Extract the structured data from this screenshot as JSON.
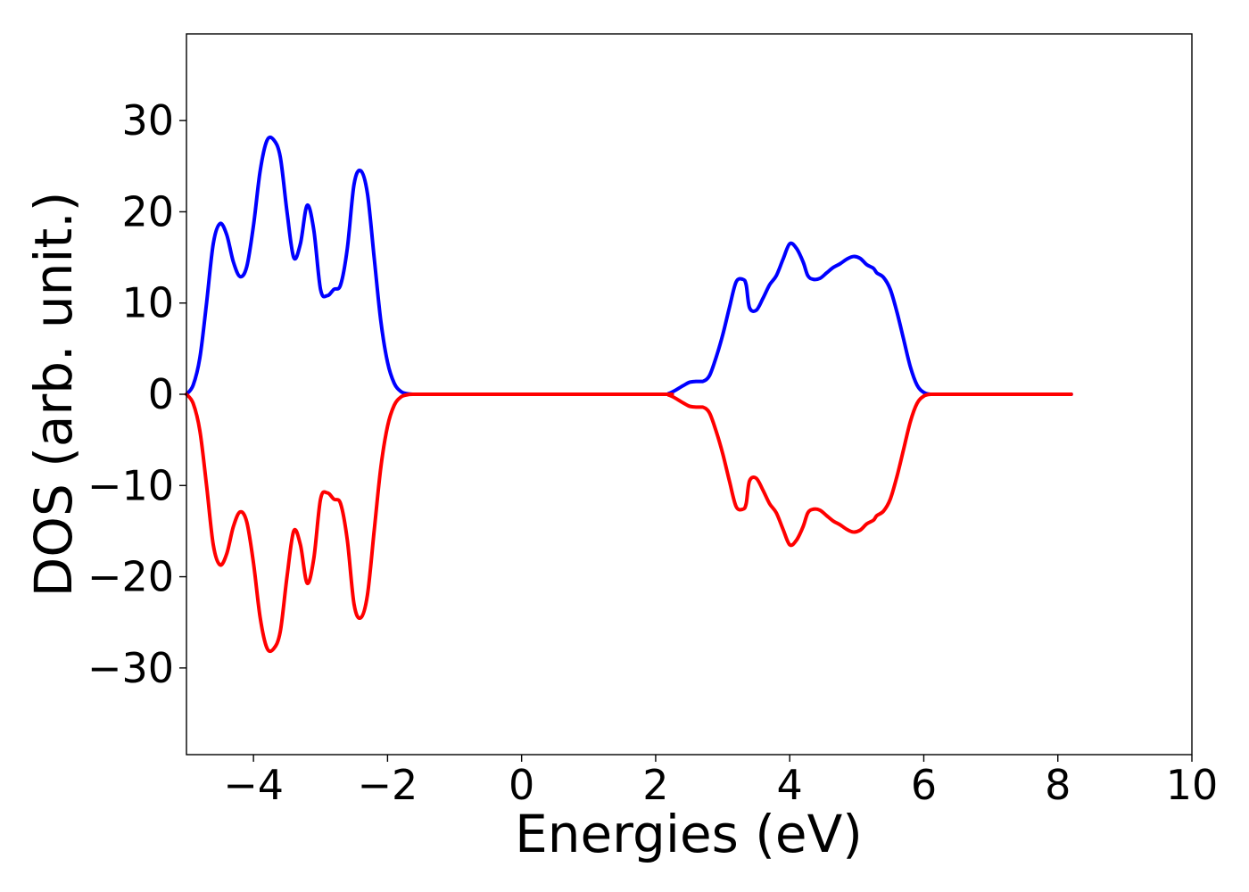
{
  "chart_data": {
    "type": "line",
    "title": "",
    "xlabel": "Energies (eV)",
    "ylabel": "DOS (arb. unit.)",
    "xlim": [
      -5,
      10
    ],
    "ylim": [
      -39.5,
      39.5
    ],
    "xticks": [
      -4,
      -2,
      0,
      2,
      4,
      6,
      8,
      10
    ],
    "yticks": [
      -30,
      -20,
      -10,
      0,
      10,
      20,
      30
    ],
    "xtick_labels": [
      "−4",
      "−2",
      "0",
      "2",
      "4",
      "6",
      "8",
      "10"
    ],
    "ytick_labels": [
      "−30",
      "−20",
      "−10",
      "0",
      "10",
      "20",
      "30"
    ],
    "grid": false,
    "legend": "none",
    "series": [
      {
        "color": "#0000ff",
        "x": [
          -5.0,
          -4.9,
          -4.8,
          -4.7,
          -4.6,
          -4.5,
          -4.4,
          -4.3,
          -4.2,
          -4.1,
          -4.0,
          -3.9,
          -3.8,
          -3.7,
          -3.6,
          -3.5,
          -3.4,
          -3.3,
          -3.2,
          -3.1,
          -3.0,
          -2.9,
          -2.8,
          -2.7,
          -2.6,
          -2.5,
          -2.4,
          -2.3,
          -2.2,
          -2.1,
          -2.0,
          -1.9,
          -1.8,
          -1.7,
          -1.6,
          -1.5,
          -1.4,
          -1.3,
          -1.2,
          -1.1,
          -1.0,
          -0.9,
          -0.8,
          -0.7,
          -0.6,
          -0.5,
          2.0,
          2.2,
          2.4,
          2.5,
          2.6,
          2.7,
          2.8,
          2.9,
          3.0,
          3.1,
          3.2,
          3.3,
          3.35,
          3.4,
          3.5,
          3.6,
          3.7,
          3.8,
          3.9,
          4.0,
          4.1,
          4.2,
          4.27,
          4.35,
          4.45,
          4.55,
          4.65,
          4.75,
          4.85,
          4.95,
          5.05,
          5.15,
          5.25,
          5.3,
          5.4,
          5.5,
          5.6,
          5.7,
          5.8,
          5.9,
          6.0,
          6.1,
          6.2,
          6.3,
          6.4,
          6.5,
          6.6,
          7.0,
          8.2
        ],
        "values": [
          0.0,
          1.0,
          4.0,
          10.0,
          16.5,
          18.7,
          17.5,
          14.5,
          12.9,
          14.0,
          18.5,
          24.5,
          27.8,
          27.9,
          26.0,
          20.0,
          15.0,
          16.5,
          20.7,
          18.0,
          11.5,
          10.8,
          11.5,
          12.0,
          16.0,
          23.0,
          24.5,
          22.0,
          15.0,
          8.0,
          3.5,
          1.2,
          0.3,
          0.05,
          0.0,
          0.0,
          0.0,
          0.0,
          0.0,
          0.0,
          0.0,
          0.0,
          0.0,
          0.0,
          0.0,
          0.0,
          0.0,
          0.1,
          0.9,
          1.3,
          1.4,
          1.4,
          2.0,
          4.0,
          6.5,
          9.5,
          12.3,
          12.6,
          12.0,
          9.5,
          9.2,
          10.5,
          12.0,
          13.0,
          14.8,
          16.5,
          16.0,
          14.5,
          13.0,
          12.6,
          12.7,
          13.3,
          13.9,
          14.3,
          14.8,
          15.1,
          14.9,
          14.2,
          13.8,
          13.3,
          12.8,
          11.5,
          9.0,
          6.0,
          3.0,
          1.0,
          0.2,
          0.0,
          0.0,
          0.0,
          0.0,
          0.0,
          0.0,
          0.0,
          0.0
        ]
      },
      {
        "color": "#ff0000",
        "x": [
          -5.0,
          -4.9,
          -4.8,
          -4.7,
          -4.6,
          -4.5,
          -4.4,
          -4.3,
          -4.2,
          -4.1,
          -4.0,
          -3.9,
          -3.8,
          -3.7,
          -3.6,
          -3.5,
          -3.4,
          -3.3,
          -3.2,
          -3.1,
          -3.0,
          -2.9,
          -2.8,
          -2.7,
          -2.6,
          -2.5,
          -2.4,
          -2.3,
          -2.2,
          -2.1,
          -2.0,
          -1.9,
          -1.8,
          -1.7,
          -1.6,
          -1.5,
          -1.4,
          -1.3,
          -1.2,
          -1.1,
          -1.0,
          -0.9,
          -0.8,
          -0.7,
          -0.6,
          -0.5,
          2.0,
          2.2,
          2.4,
          2.5,
          2.6,
          2.7,
          2.8,
          2.9,
          3.0,
          3.1,
          3.2,
          3.3,
          3.35,
          3.4,
          3.5,
          3.6,
          3.7,
          3.8,
          3.9,
          4.0,
          4.1,
          4.2,
          4.27,
          4.35,
          4.45,
          4.55,
          4.65,
          4.75,
          4.85,
          4.95,
          5.05,
          5.15,
          5.25,
          5.3,
          5.4,
          5.5,
          5.6,
          5.7,
          5.8,
          5.9,
          6.0,
          6.1,
          6.2,
          6.3,
          6.4,
          6.5,
          6.6,
          7.0,
          8.2
        ],
        "values": [
          0.0,
          -1.0,
          -4.0,
          -10.0,
          -16.5,
          -18.7,
          -17.5,
          -14.5,
          -12.9,
          -14.0,
          -18.5,
          -24.5,
          -27.8,
          -27.9,
          -26.0,
          -20.0,
          -15.0,
          -16.5,
          -20.7,
          -18.0,
          -11.5,
          -10.8,
          -11.5,
          -12.0,
          -16.0,
          -23.0,
          -24.5,
          -22.0,
          -15.0,
          -8.0,
          -3.5,
          -1.2,
          -0.3,
          -0.05,
          0.0,
          0.0,
          0.0,
          0.0,
          0.0,
          0.0,
          0.0,
          0.0,
          0.0,
          0.0,
          0.0,
          0.0,
          0.0,
          -0.1,
          -0.9,
          -1.3,
          -1.4,
          -1.4,
          -2.0,
          -4.0,
          -6.5,
          -9.5,
          -12.3,
          -12.6,
          -12.0,
          -9.5,
          -9.2,
          -10.5,
          -12.0,
          -13.0,
          -14.8,
          -16.5,
          -16.0,
          -14.5,
          -13.0,
          -12.6,
          -12.7,
          -13.3,
          -13.9,
          -14.3,
          -14.8,
          -15.1,
          -14.9,
          -14.2,
          -13.8,
          -13.3,
          -12.8,
          -11.5,
          -9.0,
          -6.0,
          -3.0,
          -1.0,
          -0.2,
          0.0,
          0.0,
          0.0,
          0.0,
          0.0,
          0.0,
          0.0,
          0.0
        ]
      }
    ]
  }
}
